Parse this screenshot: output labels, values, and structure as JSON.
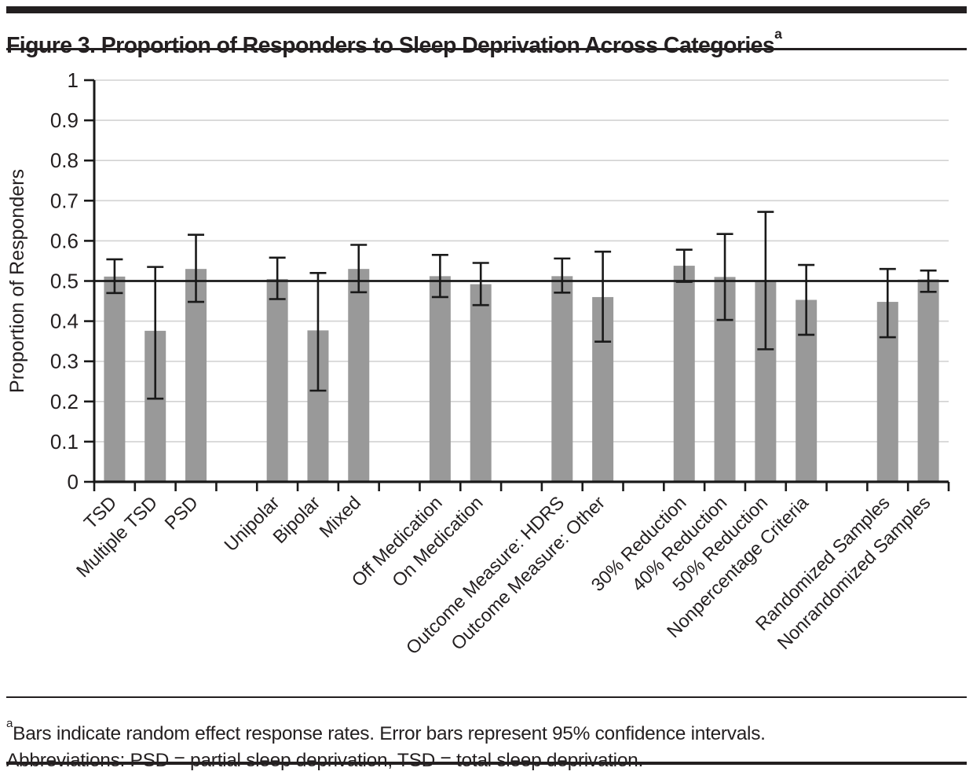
{
  "page": {
    "title": "Figure 3. Proportion of Responders to Sleep Deprivation Across Categories",
    "title_superscript": "a"
  },
  "footnote": {
    "superscript": "a",
    "line1": "Bars indicate random effect response rates. Error bars represent 95% confidence intervals.",
    "line2": "Abbreviations: PSD = partial sleep deprivation, TSD = total sleep deprivation."
  },
  "colors": {
    "bar_fill": "#999999",
    "gridline": "#d2d2d2",
    "axis": "#1a1a1a",
    "text": "#231f20",
    "rule": "#231f20"
  },
  "chart_data": {
    "type": "bar",
    "title": "Figure 3. Proportion of Responders to Sleep Deprivation Across Categories",
    "xlabel": "",
    "ylabel": "Proportion of Responders",
    "ylim": [
      0,
      1
    ],
    "yticks": [
      0,
      0.1,
      0.2,
      0.3,
      0.4,
      0.5,
      0.6,
      0.7,
      0.8,
      0.9,
      1
    ],
    "ytick_labels": [
      "0",
      "0.1",
      "0.2",
      "0.3",
      "0.4",
      "0.5",
      "0.6",
      "0.7",
      "0.8",
      "0.9",
      "1"
    ],
    "grid": true,
    "legend": "none",
    "reference_line": 0.5,
    "error_bars": "95% confidence intervals",
    "categories": [
      "TSD",
      "Multiple TSD",
      "PSD",
      "Unipolar",
      "Bipolar",
      "Mixed",
      "Off Medication",
      "On Medication",
      "Outcome Measure: HDRS",
      "Outcome Measure: Other",
      "30% Reduction",
      "40% Reduction",
      "50% Reduction",
      "Nonpercentage Criteria",
      "Randomized Samples",
      "Nonrandomized Samples"
    ],
    "values": [
      0.511,
      0.376,
      0.53,
      0.505,
      0.377,
      0.53,
      0.512,
      0.492,
      0.512,
      0.46,
      0.538,
      0.51,
      0.502,
      0.453,
      0.448,
      0.504
    ],
    "ci_low": [
      0.47,
      0.207,
      0.448,
      0.455,
      0.227,
      0.472,
      0.46,
      0.44,
      0.471,
      0.349,
      0.498,
      0.403,
      0.33,
      0.366,
      0.36,
      0.473
    ],
    "ci_high": [
      0.554,
      0.535,
      0.615,
      0.558,
      0.52,
      0.59,
      0.565,
      0.545,
      0.556,
      0.573,
      0.578,
      0.617,
      0.672,
      0.54,
      0.53,
      0.526
    ],
    "group_gaps_after": [
      2,
      5,
      7,
      9,
      13
    ]
  }
}
